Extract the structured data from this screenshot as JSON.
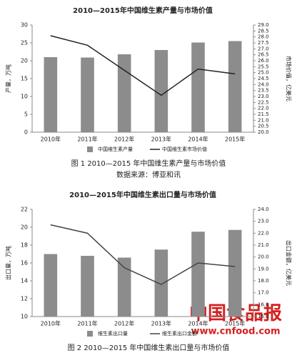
{
  "chart_data": [
    {
      "type": "bar",
      "title": "2010—2015年中国维生素产量与市场价值",
      "caption": "图 1    2010—2015 年中国维生素产量与市场价值",
      "source": "数据来源：博亚和讯",
      "y_label": "产量，万吨",
      "y2_label": "市场价值，亿美元",
      "categories": [
        "2010年",
        "2011年",
        "2012年",
        "2013年",
        "2014年",
        "2015年"
      ],
      "series": [
        {
          "name": "中国维生素产量",
          "color": "#8c8c8c",
          "values": [
            21,
            20.9,
            21.8,
            23,
            25.1,
            25.5
          ]
        },
        {
          "name": "中国维生素市场价值",
          "color": "#222222",
          "axis": "y2",
          "values": [
            28.1,
            27.3,
            25.2,
            23.1,
            25.3,
            24.9
          ]
        }
      ],
      "ylim": [
        0,
        30
      ],
      "yticks": [
        0,
        5,
        10,
        15,
        20,
        25,
        30
      ],
      "y2lim": [
        20,
        29
      ],
      "y2ticks": [
        {
          "value": 20,
          "label": "20.0"
        },
        {
          "value": 20.5,
          "label": "20.5"
        },
        {
          "value": 21,
          "label": "21.0"
        },
        {
          "value": 21.5,
          "label": "21.5"
        },
        {
          "value": 22,
          "label": "22.0"
        },
        {
          "value": 22.5,
          "label": "22.5"
        },
        {
          "value": 23,
          "label": "23.0"
        },
        {
          "value": 23.5,
          "label": "23.5"
        },
        {
          "value": 24,
          "label": "24.0"
        },
        {
          "value": 24.5,
          "label": "24.5"
        },
        {
          "value": 25,
          "label": "25.0"
        },
        {
          "value": 25.5,
          "label": "25.5"
        },
        {
          "value": 26,
          "label": "26.0"
        },
        {
          "value": 26.5,
          "label": "26.5"
        },
        {
          "value": 27,
          "label": "27.0"
        },
        {
          "value": 27.5,
          "label": "27.5"
        },
        {
          "value": 28,
          "label": "28.0"
        },
        {
          "value": 28.5,
          "label": "28.5"
        },
        {
          "value": 29,
          "label": "29.0"
        }
      ]
    },
    {
      "type": "bar",
      "title": "2010—2015年中国维生素出口量与市场价值",
      "caption": "图 2    2010—2015 年中国维生素出口量与市场价值",
      "y_label": "出口量，万吨",
      "y2_label": "出口金额，亿美元",
      "categories": [
        "2010年",
        "2011年",
        "2012年",
        "2013年",
        "2014年",
        "2015年"
      ],
      "series": [
        {
          "name": "维生素出口量",
          "color": "#8c8c8c",
          "values": [
            17,
            16.8,
            16.6,
            17.5,
            19.5,
            19.7
          ]
        },
        {
          "name": "维生素出口金额",
          "color": "#444444",
          "axis": "y2",
          "values": [
            22.7,
            22,
            19.1,
            17.7,
            19.5,
            19.2
          ]
        }
      ],
      "ylim": [
        10,
        22
      ],
      "yticks": [
        10,
        12,
        14,
        16,
        18,
        20,
        22
      ],
      "y2lim": [
        15,
        24
      ],
      "y2ticks": [
        {
          "value": 15,
          "label": "15.0"
        },
        {
          "value": 16,
          "label": "16.0"
        },
        {
          "value": 17,
          "label": "17.0"
        },
        {
          "value": 18,
          "label": "18.0"
        },
        {
          "value": 19,
          "label": "19.0"
        },
        {
          "value": 20,
          "label": "20.0"
        },
        {
          "value": 21,
          "label": "21.0"
        },
        {
          "value": 22,
          "label": "22.0"
        },
        {
          "value": 23,
          "label": "23.0"
        },
        {
          "value": 24,
          "label": "24.0"
        }
      ]
    }
  ],
  "watermark": "中国食品报",
  "watermark_url": "www.cnfood.com"
}
